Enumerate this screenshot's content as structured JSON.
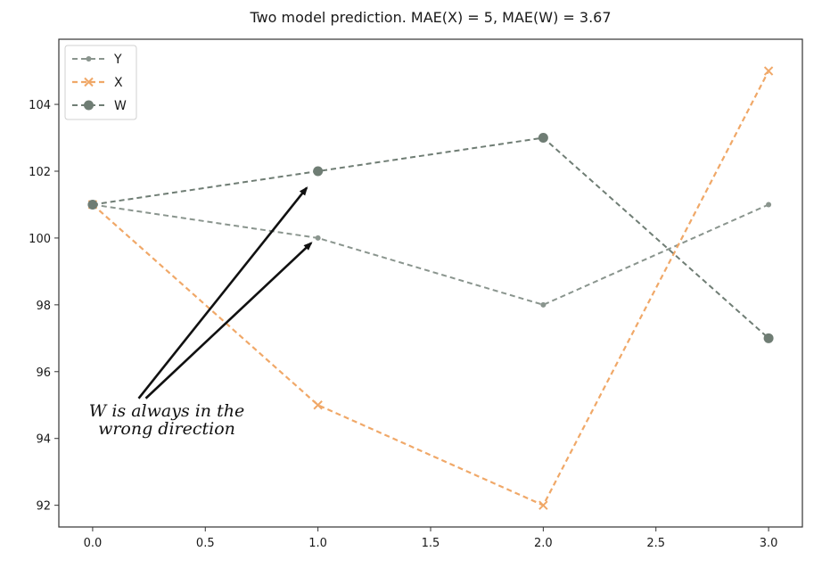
{
  "chart_data": {
    "type": "line",
    "title": "Two model prediction. MAE(X) = 5, MAE(W) = 3.67",
    "xlabel": "",
    "ylabel": "",
    "xlim": [
      -0.15,
      3.15
    ],
    "ylim": [
      91.35,
      105.95
    ],
    "x_ticks": [
      0.0,
      0.5,
      1.0,
      1.5,
      2.0,
      2.5,
      3.0
    ],
    "x_tick_labels": [
      "0.0",
      "0.5",
      "1.0",
      "1.5",
      "2.0",
      "2.5",
      "3.0"
    ],
    "y_ticks": [
      92,
      94,
      96,
      98,
      100,
      102,
      104
    ],
    "y_tick_labels": [
      "92",
      "94",
      "96",
      "98",
      "100",
      "102",
      "104"
    ],
    "grid": false,
    "legend_position": "top-left",
    "x": [
      0,
      1,
      2,
      3
    ],
    "series": [
      {
        "name": "Y",
        "values": [
          101,
          100,
          98,
          101
        ],
        "color": "#8a958e",
        "marker": "small-dot",
        "linestyle": "dashed"
      },
      {
        "name": "X",
        "values": [
          101,
          95,
          92,
          105
        ],
        "color": "#f0a868",
        "marker": "x",
        "linestyle": "dashed"
      },
      {
        "name": "W",
        "values": [
          101,
          102,
          103,
          97
        ],
        "color": "#6f7d74",
        "marker": "large-dot",
        "linestyle": "dashed"
      }
    ],
    "annotation": {
      "lines": [
        "W is always  in the",
        "wrong direction"
      ],
      "arrows_to": [
        {
          "x": 0.95,
          "y": 101.5
        },
        {
          "x": 0.97,
          "y": 99.85
        }
      ],
      "arrows_from": {
        "x": 0.22,
        "y": 95.2
      }
    }
  }
}
